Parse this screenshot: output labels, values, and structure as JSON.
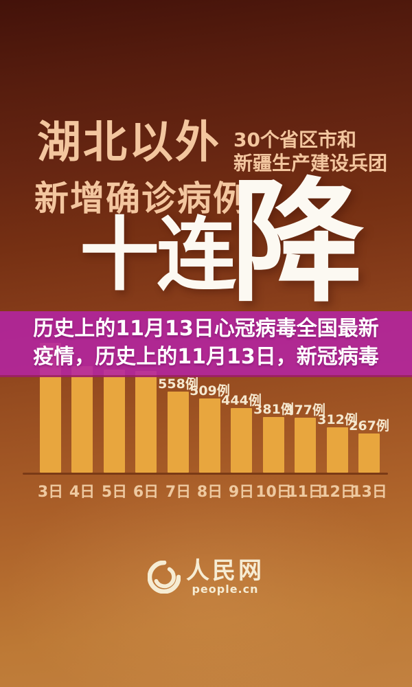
{
  "header": {
    "title_line1": "湖北以外",
    "title_line2": "新增确诊病例",
    "side_note_line1": "30个省区市和",
    "side_note_line2": "新疆生产建设兵团",
    "big_text_left": "十连",
    "big_text_right": "降",
    "headline_color": "#F3C69F",
    "big_text_color": "#FCF9F2"
  },
  "banner": {
    "line1": "历史上的11月13日心冠病毒全国最新",
    "line2": "疫情，历史上的11月13日，新冠病毒",
    "background_color": "#B424A3",
    "text_color": "#FFFFFF"
  },
  "chart_data": {
    "type": "bar",
    "title": "湖北以外新增确诊病例十连降",
    "categories": [
      "3日",
      "4日",
      "5日",
      "6日",
      "7日",
      "8日",
      "9日",
      "10日",
      "11日",
      "12日",
      "13日"
    ],
    "values": [
      890,
      731,
      707,
      696,
      558,
      509,
      444,
      381,
      377,
      312,
      267
    ],
    "value_labels": [
      "",
      "",
      "",
      "",
      "558例",
      "509例",
      "444例",
      "381例",
      "377例",
      "312例",
      "267例"
    ],
    "xlabel": "",
    "ylabel": "",
    "ylim": [
      0,
      940
    ],
    "grid": false,
    "legend": false,
    "bar_color": "#E8A63E",
    "value_label_color": "#F5E8CF",
    "category_label_color": "#EEC9A0",
    "axis_line_color": "#7A3A16"
  },
  "footer": {
    "logo_name": "人民网",
    "logo_domain": "people.cn",
    "logo_color": "#F6ECD3"
  },
  "colors": {
    "background_top": "#43120a",
    "background_bottom": "#c28140"
  }
}
